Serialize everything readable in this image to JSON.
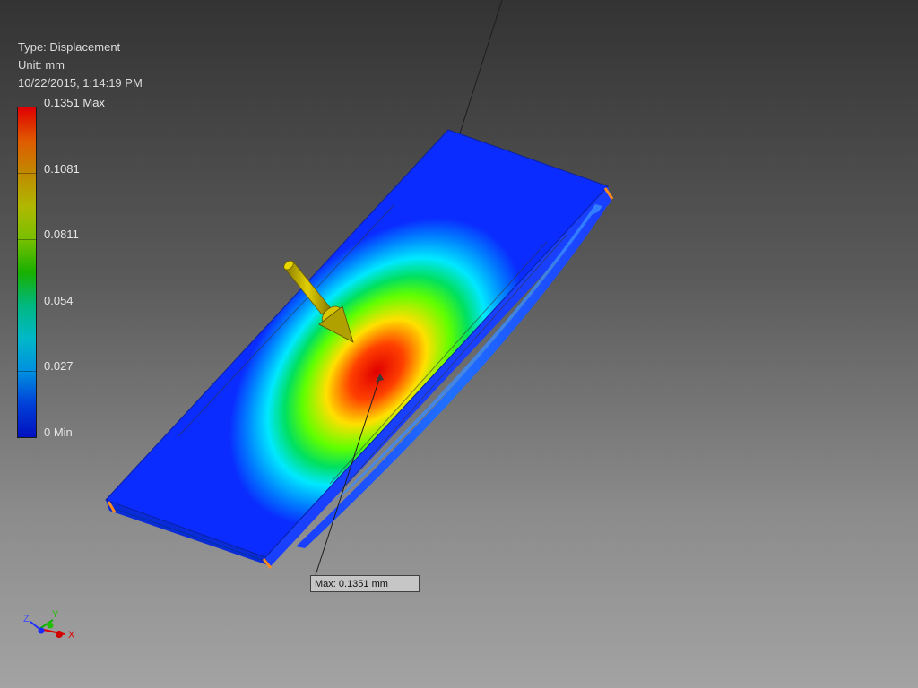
{
  "result": {
    "type_label": "Type: Displacement",
    "unit_label": "Unit: mm",
    "timestamp": "10/22/2015, 1:14:19 PM"
  },
  "legend": {
    "ticks": [
      "0.1351 Max",
      "0.1081",
      "0.0811",
      "0.054",
      "0.027",
      "0 Min"
    ]
  },
  "probe": {
    "max_label": "Max: 0.1351 mm"
  },
  "triad": {
    "x": "X",
    "y": "Y",
    "z": "Z"
  },
  "colors": {
    "plate_min": "#0a2cff",
    "contour_max": "#e00000",
    "load_arrow": "#c8b400",
    "constraint": "#ff8a1e"
  }
}
